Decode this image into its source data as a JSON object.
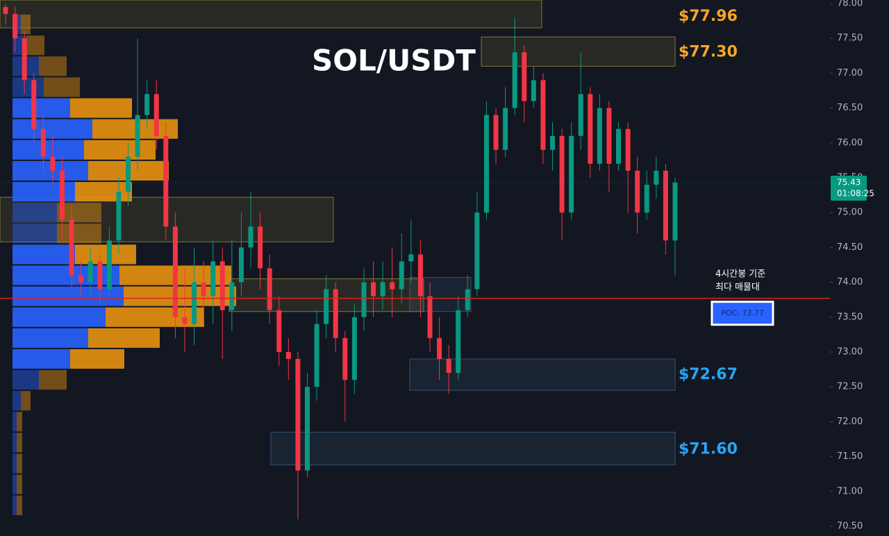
{
  "chart_data": {
    "type": "candlestick",
    "title": "SOL/USDT",
    "up_color": "#089981",
    "down_color": "#f23645",
    "open": [
      77.95,
      77.85,
      77.5,
      76.9,
      76.2,
      75.8,
      75.6,
      74.9,
      74.1,
      74.0,
      74.3,
      73.9,
      74.6,
      75.3,
      75.8,
      76.4,
      76.7,
      76.1,
      74.8,
      73.5,
      73.4,
      74.0,
      73.8,
      74.3,
      73.6,
      74.0,
      74.5,
      74.8,
      74.2,
      73.6,
      73.0,
      72.9,
      71.3,
      72.5,
      73.4,
      73.9,
      73.2,
      72.6,
      73.5,
      74.0,
      73.8,
      74.0,
      73.9,
      74.3,
      74.4,
      73.8,
      73.2,
      72.9,
      72.7,
      73.6,
      73.9,
      75.0,
      76.4,
      75.9,
      76.5,
      77.3,
      76.6,
      76.9,
      75.9,
      76.1,
      75.0,
      76.1,
      76.7,
      75.7,
      76.5,
      75.7,
      76.2,
      75.6,
      75.0,
      75.4,
      75.6,
      74.6
    ],
    "high": [
      78.0,
      77.95,
      77.6,
      77.0,
      76.4,
      76.1,
      75.8,
      75.1,
      74.3,
      74.5,
      74.4,
      74.8,
      75.5,
      76.0,
      77.5,
      76.9,
      76.9,
      76.3,
      75.0,
      74.2,
      74.5,
      74.3,
      74.6,
      74.5,
      74.6,
      75.0,
      75.3,
      75.0,
      74.4,
      73.8,
      73.2,
      73.0,
      72.7,
      73.6,
      74.1,
      74.0,
      73.3,
      73.7,
      74.2,
      74.3,
      74.3,
      74.5,
      74.7,
      74.9,
      74.6,
      74.0,
      73.5,
      73.1,
      73.8,
      74.1,
      75.3,
      76.6,
      76.5,
      76.8,
      77.8,
      77.4,
      77.1,
      77.0,
      76.3,
      76.2,
      76.3,
      77.3,
      76.8,
      76.7,
      76.6,
      76.3,
      76.3,
      75.8,
      75.6,
      75.8,
      75.7,
      75.5
    ],
    "low": [
      77.7,
      77.3,
      76.7,
      76.0,
      75.6,
      75.4,
      74.6,
      73.9,
      73.8,
      73.8,
      73.7,
      73.8,
      74.4,
      75.1,
      75.6,
      76.2,
      75.9,
      74.6,
      73.2,
      73.0,
      73.1,
      73.4,
      73.4,
      72.9,
      73.3,
      73.8,
      74.2,
      73.9,
      73.4,
      72.8,
      72.6,
      70.6,
      71.2,
      72.3,
      73.2,
      73.0,
      72.0,
      72.4,
      73.3,
      73.5,
      73.6,
      73.5,
      73.7,
      74.0,
      73.5,
      73.0,
      72.6,
      72.4,
      72.6,
      73.5,
      73.8,
      74.9,
      75.7,
      75.8,
      76.4,
      76.3,
      76.5,
      75.7,
      75.6,
      74.6,
      74.9,
      75.9,
      75.5,
      75.6,
      75.3,
      75.6,
      75.0,
      74.7,
      74.9,
      75.2,
      74.4,
      74.1
    ],
    "close": [
      77.85,
      77.5,
      76.9,
      76.2,
      75.8,
      75.6,
      74.9,
      74.1,
      74.0,
      74.3,
      73.9,
      74.6,
      75.3,
      75.8,
      76.4,
      76.7,
      76.1,
      74.8,
      73.5,
      73.4,
      74.0,
      73.8,
      74.3,
      73.6,
      74.0,
      74.5,
      74.8,
      74.2,
      73.6,
      73.0,
      72.9,
      71.3,
      72.5,
      73.4,
      73.9,
      73.2,
      72.6,
      73.5,
      74.0,
      73.8,
      74.0,
      73.9,
      74.3,
      74.4,
      73.8,
      73.2,
      72.9,
      72.7,
      73.6,
      73.9,
      75.0,
      76.4,
      75.9,
      76.5,
      77.3,
      76.6,
      76.9,
      75.9,
      76.1,
      75.0,
      76.1,
      76.7,
      75.7,
      76.5,
      75.7,
      76.2,
      75.6,
      75.0,
      75.4,
      75.6,
      74.6,
      75.43
    ],
    "ylim": [
      70.36,
      78.05
    ],
    "yticks": [
      {
        "value": 78,
        "label": "78.00"
      },
      {
        "value": 77.5,
        "label": "77.50"
      },
      {
        "value": 77,
        "label": "77.00"
      },
      {
        "value": 76.5,
        "label": "76.50"
      },
      {
        "value": 76,
        "label": "76.00"
      },
      {
        "value": 75.5,
        "label": "75.50"
      },
      {
        "value": 75,
        "label": "75.00"
      },
      {
        "value": 74.5,
        "label": "74.50"
      },
      {
        "value": 74,
        "label": "74.00"
      },
      {
        "value": 73.5,
        "label": "73.50"
      },
      {
        "value": 73,
        "label": "73.00"
      },
      {
        "value": 72.5,
        "label": "72.50"
      },
      {
        "value": 72,
        "label": "72.00"
      },
      {
        "value": 71.5,
        "label": "71.50"
      },
      {
        "value": 71,
        "label": "71.00"
      },
      {
        "value": 70.5,
        "label": "70.50"
      }
    ],
    "countdown": "01:08:25",
    "volume_profile": {
      "levels": [
        77.7,
        77.4,
        77.1,
        76.8,
        76.5,
        76.2,
        75.9,
        75.6,
        75.3,
        75.0,
        74.7,
        74.4,
        74.1,
        73.8,
        73.5,
        73.2,
        72.9,
        72.6,
        72.3,
        72.0,
        71.7,
        71.4,
        71.1,
        70.8
      ],
      "buy_color": "#2962ff",
      "sell_color": "#e8920f",
      "buy": [
        12,
        20,
        38,
        45,
        83,
        115,
        103,
        109,
        90,
        64,
        64,
        90,
        154,
        160,
        134,
        109,
        83,
        38,
        12,
        6,
        6,
        6,
        6,
        6
      ],
      "sell": [
        14,
        26,
        40,
        52,
        89,
        123,
        103,
        116,
        82,
        64,
        64,
        88,
        161,
        162,
        142,
        103,
        78,
        40,
        14,
        8,
        8,
        8,
        8,
        8
      ]
    },
    "zones": [
      {
        "range": [
          77.65,
          78.05
        ],
        "color": "#c8b040"
      },
      {
        "range": [
          77.1,
          77.52
        ],
        "color": "#c8b040"
      },
      {
        "range": [
          74.58,
          75.22
        ],
        "color": "#c8b040"
      },
      {
        "range": [
          73.58,
          74.05
        ],
        "color": "#c8b040"
      },
      {
        "range": [
          73.58,
          74.07
        ],
        "color": "#4a78a8"
      },
      {
        "range": [
          72.45,
          72.9
        ],
        "color": "#4a78a8"
      },
      {
        "range": [
          71.38,
          71.85
        ],
        "color": "#4a78a8"
      }
    ],
    "price_labels": [
      {
        "value": 77.96,
        "label": "$77.96",
        "color": "#f5a623"
      },
      {
        "value": 77.3,
        "label": "$77.30",
        "color": "#f5a623"
      },
      {
        "value": 72.67,
        "label": "$72.67",
        "color": "#2aa4f4"
      },
      {
        "value": 71.6,
        "label": "$71.60",
        "color": "#2aa4f4"
      }
    ],
    "poc": {
      "value": 73.77,
      "label": "POC: 73.77",
      "color": "#e0201e"
    },
    "annotation": [
      "4시간봉 기준",
      "최다 매물대"
    ]
  }
}
